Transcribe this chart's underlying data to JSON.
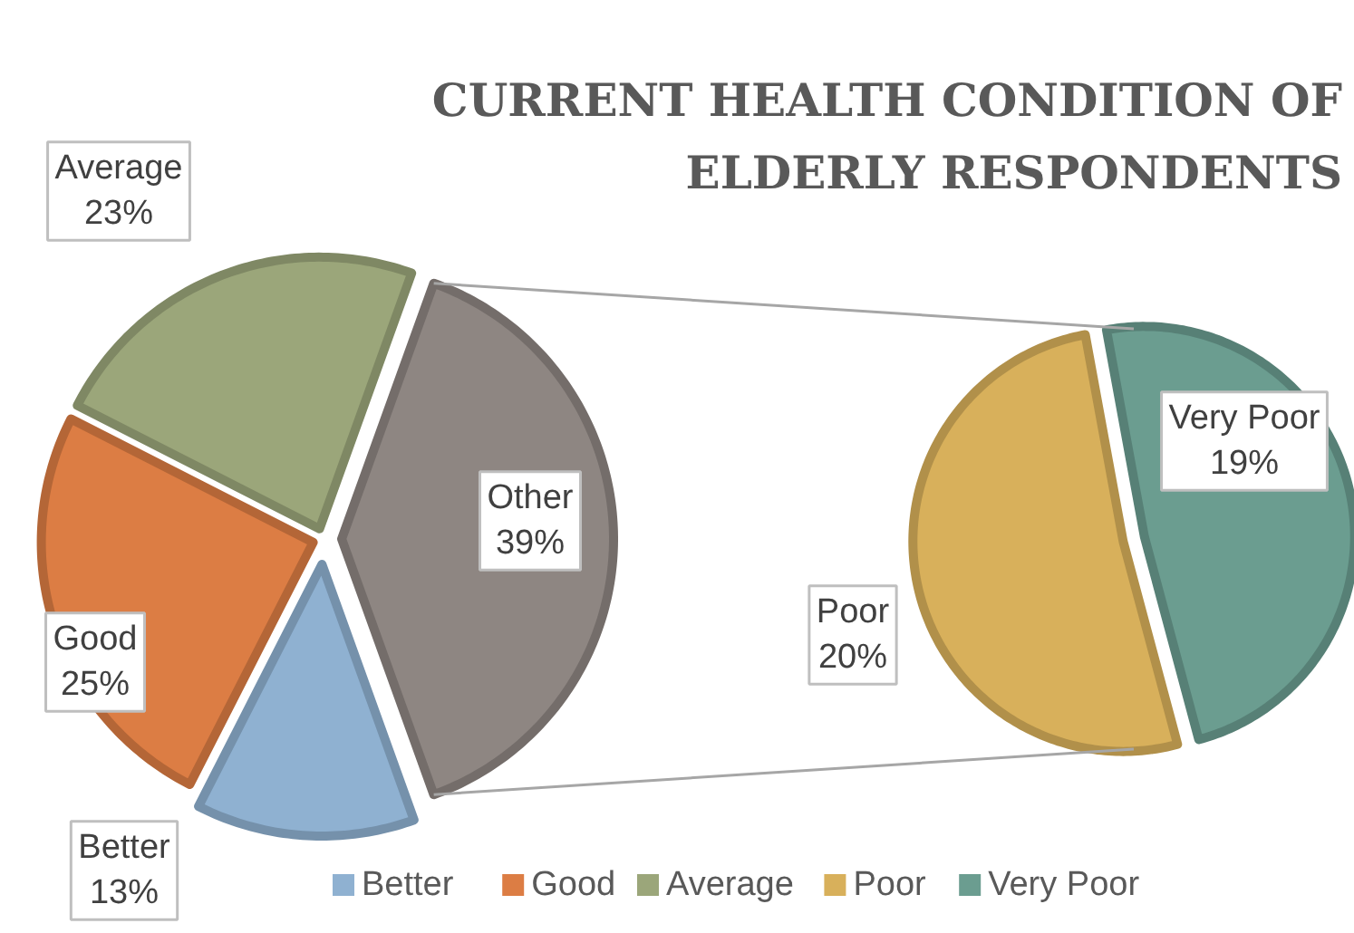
{
  "chart_data": [
    {
      "type": "pie",
      "title": "CURRENT HEALTH CONDITION OF ELDERLY RESPONDENTS",
      "categories": [
        "Better",
        "Good",
        "Average",
        null
      ],
      "values": [
        13,
        25,
        23,
        39
      ],
      "value_labels": [
        "13%",
        "25%",
        "23%",
        "39%"
      ],
      "annotations": [
        "Other"
      ],
      "colors": [
        "#8fb1d1",
        "#dc7d44",
        "#9ba67a",
        "#8e8682"
      ],
      "legend": "bottom"
    },
    {
      "type": "pie",
      "categories": [
        "Poor",
        "Very Poor"
      ],
      "values": [
        20,
        19
      ],
      "value_labels": [
        "20%",
        "19%"
      ],
      "colors": [
        "#d8b05b",
        "#6b9d90"
      ],
      "legend": "bottom"
    }
  ]
}
